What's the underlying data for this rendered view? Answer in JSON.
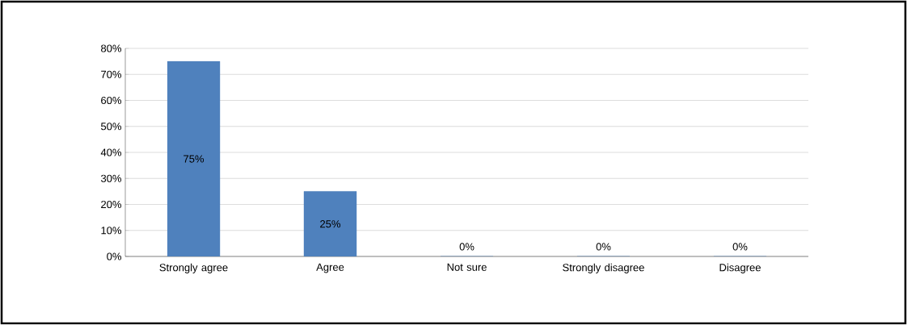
{
  "chart_data": {
    "type": "bar",
    "categories": [
      "Strongly agree",
      "Agree",
      "Not sure",
      "Strongly disagree",
      "Disagree"
    ],
    "values": [
      75,
      25,
      0,
      0,
      0
    ],
    "color": "#4f81bd",
    "value_labels": [
      "75%",
      "25%",
      "0%",
      "0%",
      "0%"
    ],
    "ylim": [
      0,
      80
    ],
    "yticks": [
      {
        "value": 0,
        "label": "0%"
      },
      {
        "value": 10,
        "label": "10%"
      },
      {
        "value": 20,
        "label": "20%"
      },
      {
        "value": 30,
        "label": "30%"
      },
      {
        "value": 40,
        "label": "40%"
      },
      {
        "value": 50,
        "label": "50%"
      },
      {
        "value": 60,
        "label": "60%"
      },
      {
        "value": 70,
        "label": "70%"
      },
      {
        "value": 80,
        "label": "80%"
      }
    ],
    "grid": "y"
  }
}
